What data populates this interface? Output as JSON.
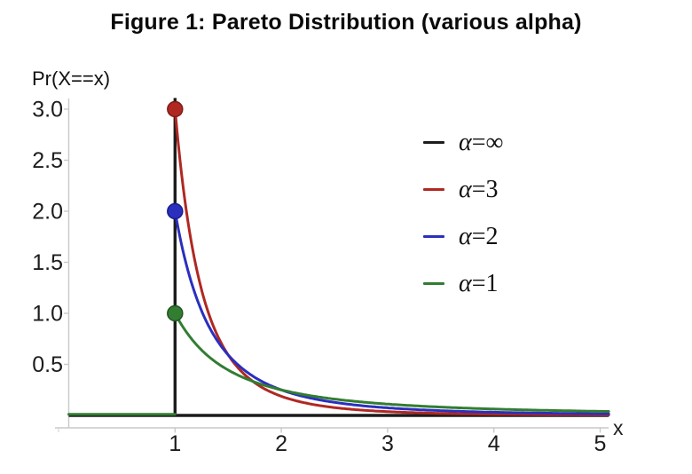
{
  "chart_data": {
    "type": "line",
    "title": "Figure 1: Pareto Distribution (various alpha)",
    "xlabel": "x",
    "ylabel": "Pr(X==x)",
    "xlim": [
      0,
      5.08
    ],
    "ylim": [
      0,
      3.11
    ],
    "x_ticks": [
      "1",
      "2",
      "3",
      "4",
      "5"
    ],
    "y_ticks": [
      "0.5",
      "1.0",
      "1.5",
      "2.0",
      "2.5",
      "3.0"
    ],
    "grid": false,
    "legend_position": "upper right",
    "series": [
      {
        "name": "α=∞",
        "alpha": "infinity",
        "color": "#1c1c1c",
        "note": "degenerate limit: point mass at x=1 drawn as vertical spike at x=1, zero elsewhere"
      },
      {
        "name": "α=3",
        "alpha": 3,
        "color": "#b02822",
        "formula": "y = 3/x^4 for x >= 1",
        "x_samples": [
          1,
          1.25,
          1.5,
          2,
          2.5,
          3,
          4,
          5
        ],
        "y_samples": [
          3,
          1.229,
          0.593,
          0.188,
          0.077,
          0.037,
          0.012,
          0.005
        ]
      },
      {
        "name": "α=2",
        "alpha": 2,
        "color": "#2b2fbe",
        "formula": "y = 2/x^3 for x >= 1",
        "x_samples": [
          1,
          1.25,
          1.5,
          2,
          2.5,
          3,
          4,
          5
        ],
        "y_samples": [
          2,
          1.024,
          0.593,
          0.25,
          0.128,
          0.074,
          0.031,
          0.016
        ]
      },
      {
        "name": "α=1",
        "alpha": 1,
        "color": "#327d32",
        "formula": "y = 1/x^2 for x >= 1",
        "zero_segment": true,
        "x_samples": [
          1,
          1.25,
          1.5,
          2,
          2.5,
          3,
          4,
          5
        ],
        "y_samples": [
          1,
          0.64,
          0.444,
          0.25,
          0.16,
          0.111,
          0.063,
          0.04
        ]
      }
    ],
    "points": [
      {
        "x": 1,
        "y": 3.0,
        "color": "#b02822",
        "edge": "#7e1b18"
      },
      {
        "x": 1,
        "y": 2.0,
        "color": "#2b2fbe",
        "edge": "#191c8c"
      },
      {
        "x": 1,
        "y": 1.0,
        "color": "#327d32",
        "edge": "#1f541f"
      }
    ],
    "axis_color": "#c9c9c9",
    "baseline_color": "#1c1c1c"
  }
}
